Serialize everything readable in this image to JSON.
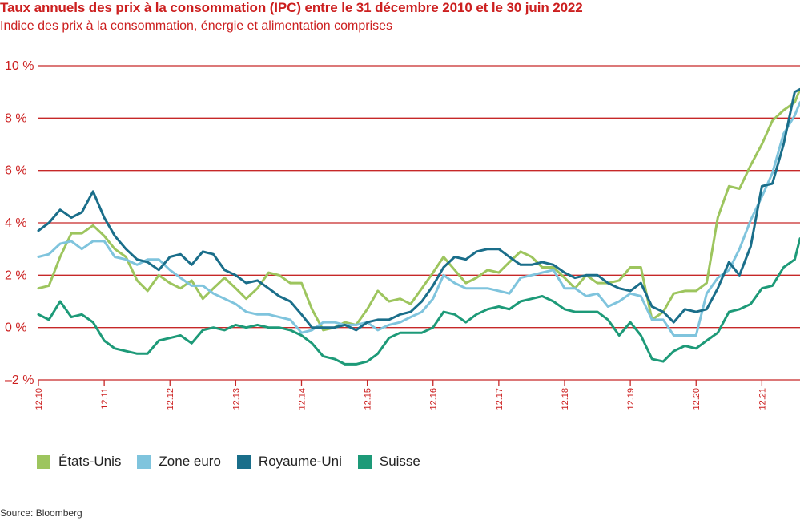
{
  "title": "Taux annuels des prix à la consommation (IPC) entre le 31 décembre 2010 et le 30 juin 2022",
  "subtitle": "Indice des prix à la consommation, énergie et alimentation comprises",
  "source": "Source: Bloomberg",
  "chart_data": {
    "type": "line",
    "title": "Taux annuels des prix à la consommation (IPC) entre le 31 décembre 2010 et le 30 juin 2022",
    "subtitle": "Indice des prix à la consommation, énergie et alimentation comprises",
    "xlabel": "",
    "ylabel": "",
    "ylim": [
      -2,
      10
    ],
    "xlim": [
      2010.92,
      2022.5
    ],
    "yticks": [
      10,
      8,
      6,
      4,
      2,
      0,
      -2
    ],
    "ytick_labels": [
      "10 %",
      "8 %",
      "6 %",
      "4 %",
      "2 %",
      "0 %",
      "–2 %"
    ],
    "xticks": [
      2010.92,
      2011.92,
      2012.92,
      2013.92,
      2014.92,
      2015.92,
      2016.92,
      2017.92,
      2018.92,
      2019.92,
      2020.92,
      2021.92
    ],
    "xtick_labels": [
      "12.10",
      "12.11",
      "12.12",
      "12.13",
      "12.14",
      "12.15",
      "12.16",
      "12.17",
      "12.18",
      "12.19",
      "12.20",
      "12.21"
    ],
    "grid": "horizontal",
    "legend_position": "bottom",
    "series": [
      {
        "name": "États-Unis",
        "color": "#9dc55e",
        "points": [
          [
            2010.92,
            1.5
          ],
          [
            2011.08,
            1.6
          ],
          [
            2011.25,
            2.7
          ],
          [
            2011.42,
            3.6
          ],
          [
            2011.58,
            3.6
          ],
          [
            2011.75,
            3.9
          ],
          [
            2011.92,
            3.5
          ],
          [
            2012.08,
            3.0
          ],
          [
            2012.25,
            2.7
          ],
          [
            2012.42,
            1.8
          ],
          [
            2012.58,
            1.4
          ],
          [
            2012.75,
            2.0
          ],
          [
            2012.92,
            1.7
          ],
          [
            2013.08,
            1.5
          ],
          [
            2013.25,
            1.8
          ],
          [
            2013.42,
            1.1
          ],
          [
            2013.58,
            1.5
          ],
          [
            2013.75,
            1.9
          ],
          [
            2013.92,
            1.5
          ],
          [
            2014.08,
            1.1
          ],
          [
            2014.25,
            1.5
          ],
          [
            2014.42,
            2.1
          ],
          [
            2014.58,
            2.0
          ],
          [
            2014.75,
            1.7
          ],
          [
            2014.92,
            1.7
          ],
          [
            2015.08,
            0.7
          ],
          [
            2015.25,
            -0.1
          ],
          [
            2015.42,
            0.0
          ],
          [
            2015.58,
            0.2
          ],
          [
            2015.75,
            0.1
          ],
          [
            2015.92,
            0.7
          ],
          [
            2016.08,
            1.4
          ],
          [
            2016.25,
            1.0
          ],
          [
            2016.42,
            1.1
          ],
          [
            2016.58,
            0.9
          ],
          [
            2016.75,
            1.5
          ],
          [
            2016.92,
            2.1
          ],
          [
            2017.08,
            2.7
          ],
          [
            2017.25,
            2.2
          ],
          [
            2017.42,
            1.7
          ],
          [
            2017.58,
            1.9
          ],
          [
            2017.75,
            2.2
          ],
          [
            2017.92,
            2.1
          ],
          [
            2018.08,
            2.5
          ],
          [
            2018.25,
            2.9
          ],
          [
            2018.42,
            2.7
          ],
          [
            2018.58,
            2.3
          ],
          [
            2018.75,
            2.3
          ],
          [
            2018.92,
            1.9
          ],
          [
            2019.08,
            1.5
          ],
          [
            2019.25,
            2.0
          ],
          [
            2019.42,
            1.7
          ],
          [
            2019.58,
            1.7
          ],
          [
            2019.75,
            1.8
          ],
          [
            2019.92,
            2.3
          ],
          [
            2020.08,
            2.3
          ],
          [
            2020.25,
            0.3
          ],
          [
            2020.42,
            0.6
          ],
          [
            2020.58,
            1.3
          ],
          [
            2020.75,
            1.4
          ],
          [
            2020.92,
            1.4
          ],
          [
            2021.08,
            1.7
          ],
          [
            2021.25,
            4.2
          ],
          [
            2021.42,
            5.4
          ],
          [
            2021.58,
            5.3
          ],
          [
            2021.75,
            6.2
          ],
          [
            2021.92,
            7.0
          ],
          [
            2022.08,
            7.9
          ],
          [
            2022.25,
            8.3
          ],
          [
            2022.42,
            8.6
          ],
          [
            2022.5,
            9.1
          ]
        ]
      },
      {
        "name": "Zone euro",
        "color": "#7fc4dd",
        "points": [
          [
            2010.92,
            2.7
          ],
          [
            2011.08,
            2.8
          ],
          [
            2011.25,
            3.2
          ],
          [
            2011.42,
            3.3
          ],
          [
            2011.58,
            3.0
          ],
          [
            2011.75,
            3.3
          ],
          [
            2011.92,
            3.3
          ],
          [
            2012.08,
            2.7
          ],
          [
            2012.25,
            2.6
          ],
          [
            2012.42,
            2.4
          ],
          [
            2012.58,
            2.6
          ],
          [
            2012.75,
            2.6
          ],
          [
            2012.92,
            2.2
          ],
          [
            2013.08,
            1.9
          ],
          [
            2013.25,
            1.6
          ],
          [
            2013.42,
            1.6
          ],
          [
            2013.58,
            1.3
          ],
          [
            2013.75,
            1.1
          ],
          [
            2013.92,
            0.9
          ],
          [
            2014.08,
            0.6
          ],
          [
            2014.25,
            0.5
          ],
          [
            2014.42,
            0.5
          ],
          [
            2014.58,
            0.4
          ],
          [
            2014.75,
            0.3
          ],
          [
            2014.92,
            -0.2
          ],
          [
            2015.08,
            -0.1
          ],
          [
            2015.25,
            0.2
          ],
          [
            2015.42,
            0.2
          ],
          [
            2015.58,
            0.1
          ],
          [
            2015.75,
            0.1
          ],
          [
            2015.92,
            0.2
          ],
          [
            2016.08,
            -0.1
          ],
          [
            2016.25,
            0.1
          ],
          [
            2016.42,
            0.2
          ],
          [
            2016.58,
            0.4
          ],
          [
            2016.75,
            0.6
          ],
          [
            2016.92,
            1.1
          ],
          [
            2017.08,
            2.0
          ],
          [
            2017.25,
            1.7
          ],
          [
            2017.42,
            1.5
          ],
          [
            2017.58,
            1.5
          ],
          [
            2017.75,
            1.5
          ],
          [
            2017.92,
            1.4
          ],
          [
            2018.08,
            1.3
          ],
          [
            2018.25,
            1.9
          ],
          [
            2018.42,
            2.0
          ],
          [
            2018.58,
            2.1
          ],
          [
            2018.75,
            2.2
          ],
          [
            2018.92,
            1.5
          ],
          [
            2019.08,
            1.5
          ],
          [
            2019.25,
            1.2
          ],
          [
            2019.42,
            1.3
          ],
          [
            2019.58,
            0.8
          ],
          [
            2019.75,
            1.0
          ],
          [
            2019.92,
            1.3
          ],
          [
            2020.08,
            1.2
          ],
          [
            2020.25,
            0.3
          ],
          [
            2020.42,
            0.3
          ],
          [
            2020.58,
            -0.3
          ],
          [
            2020.75,
            -0.3
          ],
          [
            2020.92,
            -0.3
          ],
          [
            2021.08,
            1.3
          ],
          [
            2021.25,
            1.9
          ],
          [
            2021.42,
            2.2
          ],
          [
            2021.58,
            3.0
          ],
          [
            2021.75,
            4.1
          ],
          [
            2021.92,
            5.0
          ],
          [
            2022.08,
            5.9
          ],
          [
            2022.25,
            7.4
          ],
          [
            2022.42,
            8.1
          ],
          [
            2022.5,
            8.6
          ]
        ]
      },
      {
        "name": "Royaume-Uni",
        "color": "#1a6e8a",
        "points": [
          [
            2010.92,
            3.7
          ],
          [
            2011.08,
            4.0
          ],
          [
            2011.25,
            4.5
          ],
          [
            2011.42,
            4.2
          ],
          [
            2011.58,
            4.4
          ],
          [
            2011.75,
            5.2
          ],
          [
            2011.92,
            4.2
          ],
          [
            2012.08,
            3.5
          ],
          [
            2012.25,
            3.0
          ],
          [
            2012.42,
            2.6
          ],
          [
            2012.58,
            2.5
          ],
          [
            2012.75,
            2.2
          ],
          [
            2012.92,
            2.7
          ],
          [
            2013.08,
            2.8
          ],
          [
            2013.25,
            2.4
          ],
          [
            2013.42,
            2.9
          ],
          [
            2013.58,
            2.8
          ],
          [
            2013.75,
            2.2
          ],
          [
            2013.92,
            2.0
          ],
          [
            2014.08,
            1.7
          ],
          [
            2014.25,
            1.8
          ],
          [
            2014.42,
            1.5
          ],
          [
            2014.58,
            1.2
          ],
          [
            2014.75,
            1.0
          ],
          [
            2014.92,
            0.5
          ],
          [
            2015.08,
            0.0
          ],
          [
            2015.25,
            0.0
          ],
          [
            2015.42,
            0.0
          ],
          [
            2015.58,
            0.1
          ],
          [
            2015.75,
            -0.1
          ],
          [
            2015.92,
            0.2
          ],
          [
            2016.08,
            0.3
          ],
          [
            2016.25,
            0.3
          ],
          [
            2016.42,
            0.5
          ],
          [
            2016.58,
            0.6
          ],
          [
            2016.75,
            1.0
          ],
          [
            2016.92,
            1.6
          ],
          [
            2017.08,
            2.3
          ],
          [
            2017.25,
            2.7
          ],
          [
            2017.42,
            2.6
          ],
          [
            2017.58,
            2.9
          ],
          [
            2017.75,
            3.0
          ],
          [
            2017.92,
            3.0
          ],
          [
            2018.08,
            2.7
          ],
          [
            2018.25,
            2.4
          ],
          [
            2018.42,
            2.4
          ],
          [
            2018.58,
            2.5
          ],
          [
            2018.75,
            2.4
          ],
          [
            2018.92,
            2.1
          ],
          [
            2019.08,
            1.9
          ],
          [
            2019.25,
            2.0
          ],
          [
            2019.42,
            2.0
          ],
          [
            2019.58,
            1.7
          ],
          [
            2019.75,
            1.5
          ],
          [
            2019.92,
            1.4
          ],
          [
            2020.08,
            1.7
          ],
          [
            2020.25,
            0.8
          ],
          [
            2020.42,
            0.6
          ],
          [
            2020.58,
            0.2
          ],
          [
            2020.75,
            0.7
          ],
          [
            2020.92,
            0.6
          ],
          [
            2021.08,
            0.7
          ],
          [
            2021.25,
            1.5
          ],
          [
            2021.42,
            2.5
          ],
          [
            2021.58,
            2.0
          ],
          [
            2021.75,
            3.1
          ],
          [
            2021.92,
            5.4
          ],
          [
            2022.08,
            5.5
          ],
          [
            2022.25,
            7.0
          ],
          [
            2022.42,
            9.0
          ],
          [
            2022.5,
            9.1
          ]
        ]
      },
      {
        "name": "Suisse",
        "color": "#1d9a78",
        "points": [
          [
            2010.92,
            0.5
          ],
          [
            2011.08,
            0.3
          ],
          [
            2011.25,
            1.0
          ],
          [
            2011.42,
            0.4
          ],
          [
            2011.58,
            0.5
          ],
          [
            2011.75,
            0.2
          ],
          [
            2011.92,
            -0.5
          ],
          [
            2012.08,
            -0.8
          ],
          [
            2012.25,
            -0.9
          ],
          [
            2012.42,
            -1.0
          ],
          [
            2012.58,
            -1.0
          ],
          [
            2012.75,
            -0.5
          ],
          [
            2012.92,
            -0.4
          ],
          [
            2013.08,
            -0.3
          ],
          [
            2013.25,
            -0.6
          ],
          [
            2013.42,
            -0.1
          ],
          [
            2013.58,
            0.0
          ],
          [
            2013.75,
            -0.1
          ],
          [
            2013.92,
            0.1
          ],
          [
            2014.08,
            0.0
          ],
          [
            2014.25,
            0.1
          ],
          [
            2014.42,
            0.0
          ],
          [
            2014.58,
            0.0
          ],
          [
            2014.75,
            -0.1
          ],
          [
            2014.92,
            -0.3
          ],
          [
            2015.08,
            -0.6
          ],
          [
            2015.25,
            -1.1
          ],
          [
            2015.42,
            -1.2
          ],
          [
            2015.58,
            -1.4
          ],
          [
            2015.75,
            -1.4
          ],
          [
            2015.92,
            -1.3
          ],
          [
            2016.08,
            -1.0
          ],
          [
            2016.25,
            -0.4
          ],
          [
            2016.42,
            -0.2
          ],
          [
            2016.58,
            -0.2
          ],
          [
            2016.75,
            -0.2
          ],
          [
            2016.92,
            0.0
          ],
          [
            2017.08,
            0.6
          ],
          [
            2017.25,
            0.5
          ],
          [
            2017.42,
            0.2
          ],
          [
            2017.58,
            0.5
          ],
          [
            2017.75,
            0.7
          ],
          [
            2017.92,
            0.8
          ],
          [
            2018.08,
            0.7
          ],
          [
            2018.25,
            1.0
          ],
          [
            2018.42,
            1.1
          ],
          [
            2018.58,
            1.2
          ],
          [
            2018.75,
            1.0
          ],
          [
            2018.92,
            0.7
          ],
          [
            2019.08,
            0.6
          ],
          [
            2019.25,
            0.6
          ],
          [
            2019.42,
            0.6
          ],
          [
            2019.58,
            0.3
          ],
          [
            2019.75,
            -0.3
          ],
          [
            2019.92,
            0.2
          ],
          [
            2020.08,
            -0.3
          ],
          [
            2020.25,
            -1.2
          ],
          [
            2020.42,
            -1.3
          ],
          [
            2020.58,
            -0.9
          ],
          [
            2020.75,
            -0.7
          ],
          [
            2020.92,
            -0.8
          ],
          [
            2021.08,
            -0.5
          ],
          [
            2021.25,
            -0.2
          ],
          [
            2021.42,
            0.6
          ],
          [
            2021.58,
            0.7
          ],
          [
            2021.75,
            0.9
          ],
          [
            2021.92,
            1.5
          ],
          [
            2022.08,
            1.6
          ],
          [
            2022.25,
            2.3
          ],
          [
            2022.42,
            2.6
          ],
          [
            2022.5,
            3.4
          ]
        ]
      }
    ]
  }
}
